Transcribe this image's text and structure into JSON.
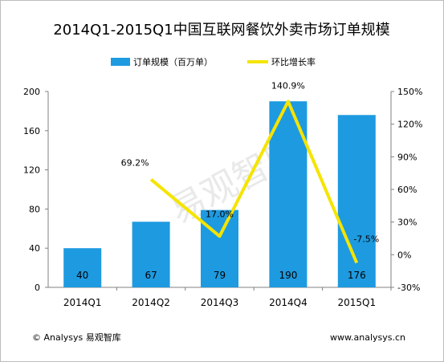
{
  "chart_data": {
    "type": "bar",
    "title": "2014Q1-2015Q1中国互联网餐饮外卖市场订单规模",
    "categories": [
      "2014Q1",
      "2014Q2",
      "2014Q3",
      "2014Q4",
      "2015Q1"
    ],
    "series": [
      {
        "name": "订单规模（百万单）",
        "type": "bar",
        "axis": "left",
        "color": "#1e9ae0",
        "values": [
          40,
          67,
          79,
          190,
          176
        ],
        "data_labels": [
          "40",
          "67",
          "79",
          "190",
          "176"
        ]
      },
      {
        "name": "环比增长率",
        "type": "line",
        "axis": "right",
        "color": "#f5e400",
        "x": [
          "2014Q2",
          "2014Q3",
          "2014Q4",
          "2015Q1"
        ],
        "values": [
          69.2,
          17.0,
          140.9,
          -7.5
        ],
        "data_labels": [
          "69.2%",
          "17.0%",
          "140.9%",
          "-7.5%"
        ]
      }
    ],
    "y_left": {
      "min": 0,
      "max": 200,
      "ticks": [
        "0",
        "40",
        "80",
        "120",
        "160",
        "200"
      ],
      "tick_values": [
        0,
        40,
        80,
        120,
        160,
        200
      ]
    },
    "y_right": {
      "min": -30,
      "max": 150,
      "ticks": [
        "-30%",
        "0%",
        "30%",
        "60%",
        "90%",
        "120%",
        "150%"
      ],
      "tick_values": [
        -30,
        0,
        30,
        60,
        90,
        120,
        150
      ]
    },
    "legend_position": "top",
    "grid": false
  },
  "watermark": "易观智库",
  "footer": {
    "left": "© Analysys 易观智库",
    "right": "www.analysys.cn"
  }
}
